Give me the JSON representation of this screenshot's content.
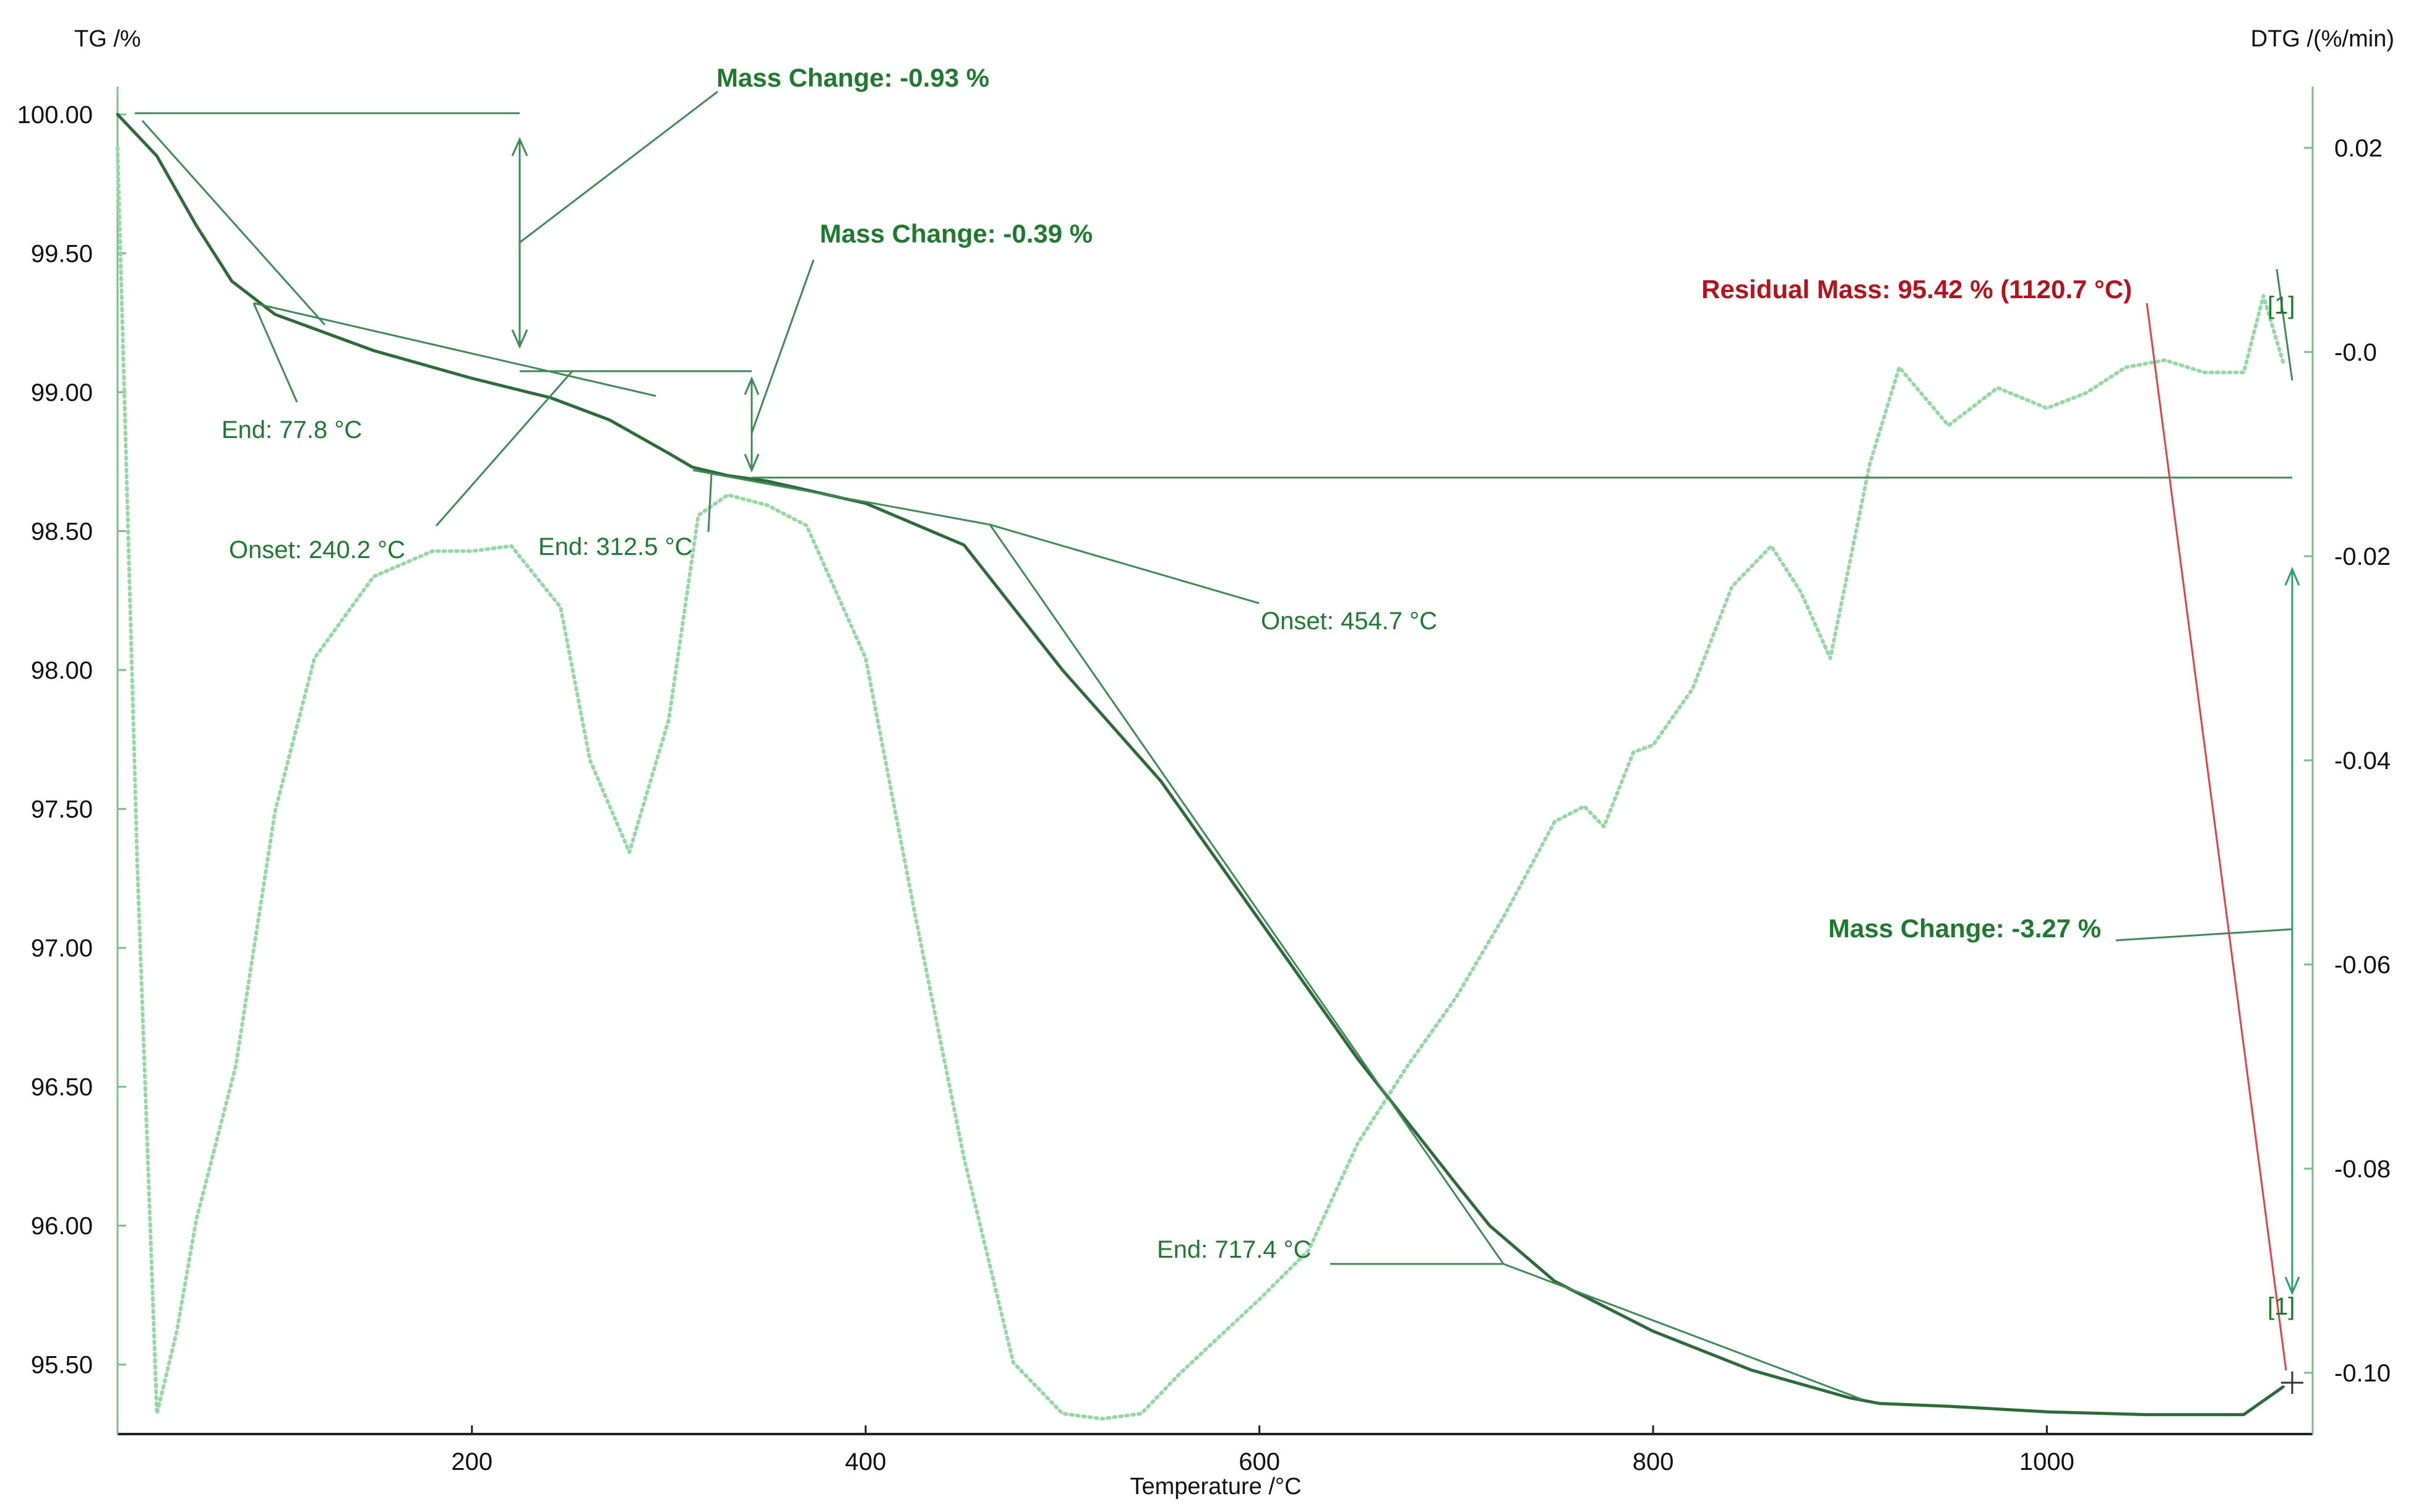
{
  "chart_data": {
    "type": "line",
    "title": "",
    "xlabel": "Temperature /°C",
    "ylabel_left": "TG /%",
    "ylabel_right": "DTG /(%/min)",
    "xlim": [
      20,
      1135
    ],
    "ylim_left": [
      95.25,
      100.1
    ],
    "ylim_right": [
      -0.106,
      0.026
    ],
    "x_ticks": [
      "200",
      "400",
      "600",
      "800",
      "1000"
    ],
    "y_left_ticks": [
      "100.00",
      "99.50",
      "99.00",
      "98.50",
      "98.00",
      "97.50",
      "97.00",
      "96.50",
      "96.00",
      "95.50"
    ],
    "y_right_ticks": [
      "0.02",
      "-0.0",
      "-0.02",
      "-0.04",
      "-0.06",
      "-0.08",
      "-0.10"
    ],
    "grid": false,
    "colors": {
      "tg": "#2f6b3a",
      "dtg": "#96d8a4",
      "annotation": "#1f7a2f",
      "residual": "#b5121b",
      "marker_line": "#2aa06a"
    },
    "series": [
      {
        "id": "tg",
        "axis": "left",
        "x": [
          20,
          40,
          60,
          78,
          100,
          150,
          200,
          240,
          270,
          300,
          312,
          330,
          350,
          400,
          450,
          500,
          550,
          600,
          650,
          700,
          717,
          750,
          800,
          850,
          900,
          915,
          950,
          1000,
          1050,
          1100,
          1120
        ],
        "y": [
          100.0,
          99.85,
          99.6,
          99.4,
          99.28,
          99.15,
          99.05,
          98.98,
          98.9,
          98.78,
          98.73,
          98.7,
          98.68,
          98.6,
          98.45,
          98.0,
          97.6,
          97.1,
          96.6,
          96.15,
          96.0,
          95.8,
          95.62,
          95.48,
          95.38,
          95.36,
          95.35,
          95.33,
          95.32,
          95.32,
          95.42
        ]
      },
      {
        "id": "dtg",
        "axis": "right",
        "x": [
          20,
          30,
          40,
          50,
          60,
          80,
          100,
          120,
          150,
          180,
          200,
          220,
          245,
          260,
          280,
          300,
          315,
          330,
          350,
          370,
          400,
          425,
          450,
          475,
          500,
          520,
          540,
          560,
          600,
          625,
          650,
          675,
          700,
          725,
          750,
          765,
          775,
          790,
          800,
          820,
          840,
          860,
          875,
          890,
          910,
          925,
          950,
          975,
          1000,
          1020,
          1040,
          1060,
          1080,
          1100,
          1110,
          1120
        ],
        "y": [
          0.02,
          -0.05,
          -0.104,
          -0.096,
          -0.085,
          -0.07,
          -0.045,
          -0.03,
          -0.022,
          -0.0195,
          -0.0195,
          -0.019,
          -0.025,
          -0.04,
          -0.049,
          -0.036,
          -0.016,
          -0.014,
          -0.015,
          -0.017,
          -0.03,
          -0.055,
          -0.079,
          -0.099,
          -0.104,
          -0.1045,
          -0.104,
          -0.1,
          -0.0928,
          -0.088,
          -0.0775,
          -0.07,
          -0.0632,
          -0.055,
          -0.046,
          -0.0445,
          -0.0465,
          -0.0392,
          -0.0385,
          -0.033,
          -0.023,
          -0.019,
          -0.0235,
          -0.03,
          -0.011,
          -0.0015,
          -0.0072,
          -0.0035,
          -0.0055,
          -0.004,
          -0.0015,
          -0.0008,
          -0.002,
          -0.002,
          0.0055,
          -0.001
        ]
      }
    ],
    "annotations": {
      "mass_change_1": "Mass Change: -0.93 %",
      "mass_change_2": "Mass Change: -0.39 %",
      "mass_change_3": "Mass Change: -3.27 %",
      "residual_mass": "Residual Mass: 95.42 % (1120.7 °C)",
      "end_1": "End: 77.8 °C",
      "onset_1": "Onset: 240.2 °C",
      "end_2": "End: 312.5 °C",
      "onset_2": "Onset: 454.7 °C",
      "end_3": "End: 717.4 °C",
      "marker_top": "[1]",
      "marker_bottom": "[1]"
    }
  }
}
